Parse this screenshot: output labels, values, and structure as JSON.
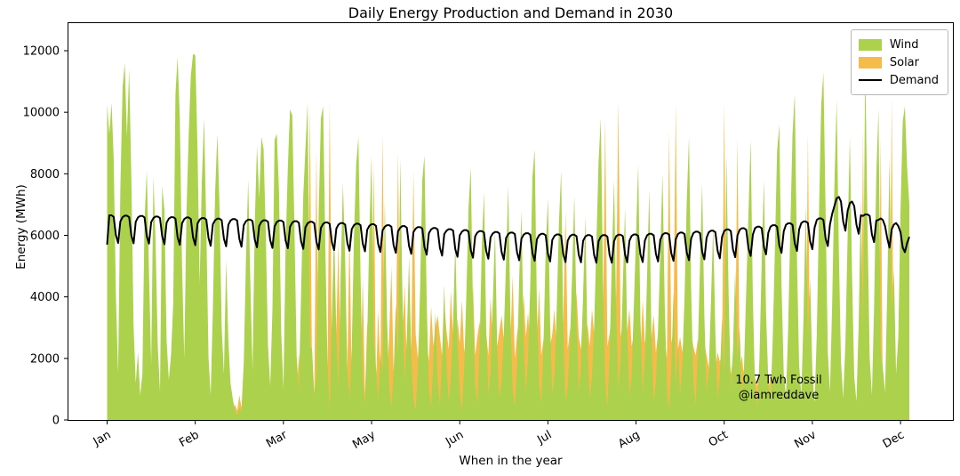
{
  "chart_data": {
    "type": "area",
    "title": "Daily Energy Production and Demand in 2030",
    "xlabel": "When in the year",
    "ylabel": "Energy (MWh)",
    "x_unit": "day_of_year_2030",
    "xlim_days": [
      -18,
      384
    ],
    "ylim": [
      0,
      12900
    ],
    "grid": false,
    "legend_position": "upper right",
    "x_ticks": [
      {
        "day": 0,
        "label": "Jan"
      },
      {
        "day": 40,
        "label": "Feb"
      },
      {
        "day": 80,
        "label": "Mar"
      },
      {
        "day": 120,
        "label": "May"
      },
      {
        "day": 160,
        "label": "Jun"
      },
      {
        "day": 200,
        "label": "Jul"
      },
      {
        "day": 240,
        "label": "Aug"
      },
      {
        "day": 280,
        "label": "Oct"
      },
      {
        "day": 320,
        "label": "Nov"
      },
      {
        "day": 360,
        "label": "Dec"
      }
    ],
    "y_ticks": [
      0,
      2000,
      4000,
      6000,
      8000,
      10000,
      12000
    ],
    "annotation": {
      "line1": "10.7 Twh Fossil",
      "line2": "@iamreddave",
      "x_day": 305,
      "y_value": 1300
    },
    "draw_order": [
      "Solar",
      "Wind",
      "Demand"
    ],
    "series": [
      {
        "name": "Wind",
        "type": "area",
        "color": "#abd14d",
        "values": [
          10250,
          9300,
          10300,
          8500,
          4000,
          1500,
          7500,
          10800,
          11600,
          9200,
          11400,
          7800,
          3000,
          1200,
          2200,
          800,
          1500,
          6500,
          8100,
          4800,
          1800,
          7900,
          5800,
          2400,
          900,
          7600,
          6800,
          2600,
          1300,
          2100,
          3800,
          10600,
          11800,
          9800,
          5000,
          2000,
          6700,
          9200,
          11200,
          11900,
          11850,
          8800,
          4400,
          7800,
          9800,
          6200,
          2000,
          800,
          3600,
          7400,
          9300,
          7000,
          3000,
          1500,
          5200,
          2600,
          1200,
          700,
          300,
          150,
          400,
          250,
          1800,
          5200,
          7800,
          4400,
          1600,
          6400,
          8900,
          7200,
          9200,
          8800,
          6100,
          2400,
          1100,
          3600,
          9100,
          9300,
          7400,
          2800,
          1000,
          5600,
          8200,
          10100,
          9900,
          6300,
          2100,
          900,
          4100,
          7300,
          8800,
          10300,
          2400,
          2300,
          800,
          1400,
          6700,
          9800,
          10200,
          5600,
          1900,
          300,
          3400,
          6200,
          2700,
          1100,
          4800,
          7700,
          5200,
          1600,
          700,
          2300,
          5900,
          8300,
          9200,
          4700,
          1300,
          500,
          2600,
          6100,
          8600,
          2600,
          1700,
          600,
          2200,
          1500,
          7100,
          3300,
          1100,
          400,
          1500,
          3800,
          2000,
          8500,
          4100,
          1200,
          2700,
          5300,
          2000,
          700,
          300,
          1600,
          4200,
          7800,
          8600,
          3900,
          1000,
          400,
          1900,
          3500,
          1200,
          500,
          2100,
          4400,
          1800,
          600,
          1400,
          3200,
          5800,
          2500,
          900,
          300,
          1700,
          4000,
          6900,
          8200,
          3600,
          1100,
          500,
          2300,
          5600,
          7400,
          2900,
          800,
          1600,
          3800,
          6200,
          2200,
          700,
          1300,
          2800,
          5100,
          7600,
          3400,
          1000,
          400,
          1800,
          4600,
          6800,
          2600,
          900,
          2000,
          4300,
          7900,
          8800,
          3700,
          1200,
          500,
          2400,
          5500,
          7200,
          3100,
          800,
          1500,
          3600,
          6400,
          8100,
          2900,
          600,
          1100,
          2500,
          4800,
          7300,
          3300,
          900,
          1700,
          4100,
          6600,
          2300,
          700,
          1400,
          3000,
          5700,
          8400,
          9800,
          4500,
          1300,
          400,
          2100,
          5200,
          7800,
          3500,
          1000,
          1900,
          4400,
          6900,
          2700,
          800,
          1500,
          3700,
          6100,
          8300,
          3200,
          900,
          2000,
          4700,
          7500,
          2600,
          600,
          1200,
          2900,
          5400,
          8000,
          3800,
          1100,
          300,
          1600,
          4200,
          1200,
          2400,
          800,
          1800,
          4000,
          7100,
          9200,
          4300,
          1200,
          500,
          2200,
          5000,
          7700,
          3400,
          900,
          1600,
          3900,
          6300,
          2800,
          700,
          1400,
          3300,
          1500,
          8600,
          4100,
          1000,
          2300,
          4900,
          2000,
          3000,
          800,
          1700,
          4200,
          6700,
          9100,
          3900,
          1100,
          400,
          2000,
          5100,
          7800,
          3500,
          1300,
          600,
          2600,
          5600,
          8700,
          9600,
          4400,
          1500,
          700,
          2900,
          6200,
          9300,
          10600,
          5200,
          1800,
          800,
          3400,
          7000,
          2600,
          4600,
          1600,
          500,
          2800,
          6600,
          10200,
          11300,
          6800,
          2200,
          900,
          3800,
          7600,
          10400,
          5500,
          1900,
          700,
          2500,
          6000,
          9200,
          4800,
          1400,
          600,
          3100,
          7200,
          3000,
          11600,
          6400,
          2000,
          800,
          3600,
          7900,
          10100,
          2200,
          1700,
          900,
          4300,
          8500,
          3500,
          4900,
          1500,
          2700,
          6800,
          9700,
          10200,
          8200,
          7000
        ]
      },
      {
        "name": "Solar",
        "type": "area",
        "color": "#f5bc4b",
        "values": [
          300,
          450,
          250,
          600,
          400,
          200,
          350,
          500,
          700,
          400,
          250,
          300,
          900,
          1200,
          600,
          350,
          450,
          800,
          550,
          300,
          400,
          650,
          350,
          200,
          500,
          750,
          400,
          300,
          600,
          450,
          350,
          500,
          800,
          600,
          400,
          300,
          700,
          900,
          500,
          350,
          600,
          400,
          1100,
          700,
          450,
          350,
          800,
          600,
          400,
          900,
          1200,
          800,
          500,
          400,
          1500,
          700,
          450,
          350,
          500,
          300,
          800,
          400,
          1800,
          900,
          600,
          1400,
          700,
          500,
          2100,
          800,
          600,
          1300,
          900,
          2400,
          700,
          500,
          1600,
          800,
          1100,
          2000,
          900,
          2600,
          700,
          1200,
          3400,
          800,
          600,
          2200,
          1000,
          2800,
          1500,
          800,
          10200,
          1200,
          900,
          8800,
          1000,
          700,
          2500,
          5200,
          1200,
          10300,
          1500,
          900,
          3000,
          5800,
          1100,
          800,
          4200,
          1600,
          6200,
          1000,
          2800,
          900,
          5400,
          1200,
          4600,
          800,
          3200,
          1400,
          2400,
          8300,
          1100,
          3600,
          1500,
          9300,
          1800,
          1200,
          2800,
          5000,
          1600,
          2200,
          8700,
          1300,
          2600,
          4400,
          1700,
          3400,
          2300,
          8100,
          2800,
          2000,
          3300,
          1500,
          4100,
          2600,
          1900,
          3700,
          2400,
          3000,
          3400,
          2700,
          2100,
          3800,
          2900,
          2300,
          4200,
          2600,
          2000,
          3300,
          2500,
          3900,
          2200,
          2800,
          3500,
          2400,
          4400,
          2100,
          2700,
          3200,
          2300,
          3600,
          2800,
          2100,
          4000,
          2600,
          3100,
          2400,
          2900,
          3400,
          2600,
          2200,
          3700,
          2500,
          4700,
          2000,
          2800,
          3300,
          2400,
          4100,
          2700,
          3500,
          2300,
          2900,
          3800,
          2500,
          4300,
          2100,
          2600,
          3100,
          5200,
          2400,
          2800,
          3600,
          2200,
          4000,
          2600,
          3200,
          6800,
          2300,
          2900,
          3400,
          2500,
          4200,
          2700,
          2300,
          3800,
          2600,
          3100,
          2400,
          3600,
          2800,
          2200,
          4400,
          2600,
          3000,
          9800,
          2400,
          2800,
          3500,
          2500,
          4100,
          10400,
          2700,
          3200,
          2300,
          2900,
          3600,
          2400,
          2800,
          3300,
          2600,
          2100,
          3900,
          2500,
          3000,
          2300,
          2700,
          3400,
          2200,
          2800,
          2400,
          3100,
          2600,
          2000,
          9400,
          2500,
          2900,
          10300,
          2300,
          2700,
          2200,
          3000,
          2500,
          1900,
          2800,
          2400,
          2100,
          2600,
          2300,
          1800,
          2500,
          2100,
          1700,
          2400,
          2000,
          1600,
          2200,
          1900,
          2100,
          10300,
          1700,
          2300,
          1500,
          2000,
          1800,
          9200,
          1600,
          2100,
          1400,
          1900,
          1500,
          1200,
          1800,
          1400,
          1100,
          1600,
          1300,
          1700,
          1200,
          1000,
          1400,
          1100,
          2700,
          900,
          1300,
          1000,
          1500,
          800,
          1200,
          900,
          1100,
          700,
          1400,
          1000,
          800,
          1200,
          900,
          9300,
          1100,
          800,
          600,
          1000,
          700,
          900,
          1300,
          600,
          800,
          500,
          900,
          700,
          500,
          800,
          600,
          400,
          700,
          900,
          500,
          600,
          800,
          400,
          600,
          500,
          9400,
          700,
          400,
          600,
          300,
          500,
          700,
          500,
          9200,
          400,
          600,
          300,
          500,
          10500,
          400,
          600,
          500,
          300,
          500,
          400,
          600,
          350
        ]
      },
      {
        "name": "Demand",
        "type": "line",
        "color": "#000000",
        "values": [
          5700,
          6650,
          6650,
          6600,
          6000,
          5750,
          6450,
          6590,
          6640,
          6640,
          6590,
          5990,
          5740,
          6440,
          6580,
          6630,
          6630,
          6580,
          5980,
          5730,
          6430,
          6560,
          6610,
          6610,
          6560,
          5960,
          5710,
          6410,
          6540,
          6590,
          6590,
          6540,
          5940,
          5690,
          6390,
          6530,
          6580,
          6580,
          6530,
          5930,
          5680,
          6380,
          6510,
          6560,
          6560,
          6510,
          5910,
          5660,
          6360,
          6490,
          6540,
          6540,
          6490,
          5890,
          5640,
          6340,
          6480,
          6530,
          6530,
          6480,
          5880,
          5630,
          6330,
          6460,
          6510,
          6510,
          6460,
          5860,
          5610,
          6310,
          6440,
          6490,
          6490,
          6440,
          5840,
          5590,
          6290,
          6430,
          6480,
          6480,
          6430,
          5830,
          5580,
          6280,
          6410,
          6460,
          6460,
          6410,
          5810,
          5560,
          6260,
          6390,
          6440,
          6440,
          6390,
          5790,
          5540,
          6240,
          6370,
          6420,
          6420,
          6370,
          5770,
          5520,
          6220,
          6350,
          6400,
          6400,
          6350,
          5750,
          5500,
          6200,
          6330,
          6380,
          6380,
          6330,
          5730,
          5480,
          6180,
          6310,
          6360,
          6360,
          6310,
          5710,
          5460,
          6160,
          6280,
          6330,
          6330,
          6280,
          5680,
          5430,
          6130,
          6250,
          6300,
          6300,
          6250,
          5650,
          5400,
          6100,
          6220,
          6270,
          6270,
          6220,
          5620,
          5370,
          6070,
          6190,
          6240,
          6240,
          6190,
          5590,
          5340,
          6040,
          6150,
          6200,
          6200,
          6150,
          5550,
          5300,
          6000,
          6120,
          6170,
          6170,
          6120,
          5520,
          5270,
          5970,
          6090,
          6140,
          6140,
          6090,
          5490,
          5240,
          5940,
          6060,
          6110,
          6110,
          6060,
          5460,
          5210,
          5910,
          6040,
          6090,
          6090,
          6040,
          5440,
          5190,
          5890,
          6020,
          6070,
          6070,
          6020,
          5420,
          5170,
          5870,
          6000,
          6050,
          6050,
          6000,
          5400,
          5150,
          5850,
          5980,
          6030,
          6030,
          5980,
          5380,
          5130,
          5830,
          5970,
          6020,
          6020,
          5970,
          5370,
          5120,
          5820,
          5960,
          6010,
          6010,
          5960,
          5360,
          5110,
          5810,
          5960,
          6010,
          6010,
          5960,
          5360,
          5110,
          5810,
          5970,
          6020,
          6020,
          5970,
          5370,
          5120,
          5820,
          5980,
          6030,
          6030,
          5980,
          5380,
          5130,
          5830,
          6000,
          6050,
          6050,
          6000,
          5400,
          5150,
          5850,
          6020,
          6070,
          6070,
          6020,
          5420,
          5170,
          5870,
          6040,
          6090,
          6090,
          6040,
          5440,
          5190,
          5890,
          6070,
          6120,
          6120,
          6070,
          5470,
          5220,
          5920,
          6100,
          6150,
          6150,
          6100,
          5500,
          5250,
          5950,
          6140,
          6190,
          6190,
          6140,
          5540,
          5290,
          5990,
          6180,
          6230,
          6230,
          6180,
          5580,
          5330,
          6030,
          6230,
          6280,
          6280,
          6230,
          5630,
          5380,
          6080,
          6280,
          6330,
          6330,
          6280,
          5680,
          5430,
          6130,
          6340,
          6390,
          6390,
          6340,
          5740,
          5490,
          6190,
          6400,
          6450,
          6450,
          6400,
          5800,
          5550,
          6250,
          6500,
          6550,
          6550,
          6500,
          5900,
          5650,
          6350,
          6700,
          6950,
          7200,
          7250,
          7100,
          6450,
          6150,
          6800,
          7050,
          7100,
          6950,
          6350,
          6050,
          6650,
          6630,
          6680,
          6680,
          6630,
          6030,
          5780,
          6480,
          6500,
          6550,
          6500,
          6300,
          5900,
          5600,
          6200,
          6350,
          6400,
          6300,
          6100,
          5600,
          5450,
          5750,
          5950
        ]
      }
    ]
  }
}
